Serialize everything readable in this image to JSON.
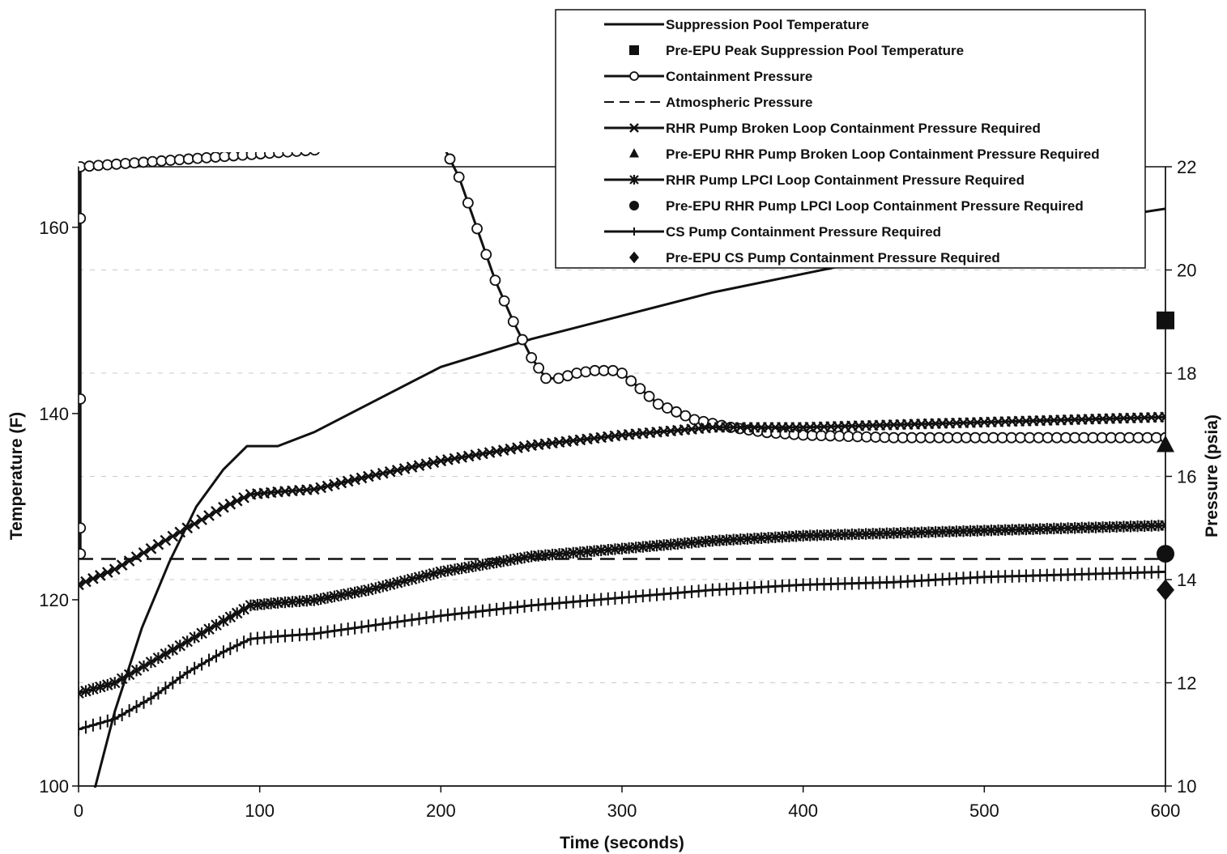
{
  "chart_data": {
    "type": "line",
    "xlabel": "Time (seconds)",
    "ylabel_left": "Temperature (F)",
    "ylabel_right": "Pressure (psia)",
    "xlim": [
      0,
      600
    ],
    "ylim_left": [
      100,
      166.5
    ],
    "ylim_right": [
      10,
      22
    ],
    "x_ticks": [
      "0",
      "100",
      "200",
      "300",
      "400",
      "500",
      "600"
    ],
    "y_left_ticks": [
      "100",
      "120",
      "140",
      "160"
    ],
    "y_right_ticks": [
      "10",
      "12",
      "14",
      "16",
      "18",
      "20",
      "22"
    ],
    "grid": "horizontal dashed",
    "legend": "top-right",
    "colors": {
      "line": "#111111",
      "background": "#ffffff"
    },
    "series": [
      {
        "name": "Suppression Pool Temperature",
        "axis": "left",
        "style": "solid",
        "x": [
          8,
          20,
          35,
          50,
          65,
          80,
          93,
          100,
          110,
          130,
          160,
          200,
          250,
          300,
          350,
          400,
          450,
          500,
          550,
          600
        ],
        "y": [
          99,
          108,
          117,
          124,
          130,
          134,
          136.5,
          136.5,
          136.5,
          138,
          141,
          145,
          148,
          150.5,
          153,
          155,
          157,
          158.8,
          160.5,
          162
        ]
      },
      {
        "name": "Pre-EPU Peak Suppression Pool Temperature",
        "axis": "left",
        "marker": "square",
        "x": [
          600
        ],
        "y": [
          150
        ]
      },
      {
        "name": "Containment Pressure",
        "axis": "right",
        "style": "solid",
        "marker": "circle",
        "x": [
          1,
          1,
          1,
          1,
          1,
          200,
          210,
          220,
          230,
          240,
          250,
          258,
          265,
          275,
          285,
          295,
          300,
          310,
          320,
          340,
          360,
          380,
          400,
          450,
          500,
          550,
          600
        ],
        "y": [
          14.5,
          15,
          17.5,
          21,
          22,
          22.5,
          21.8,
          20.8,
          19.8,
          19.0,
          18.3,
          17.9,
          17.9,
          18.0,
          18.05,
          18.05,
          18.0,
          17.7,
          17.4,
          17.1,
          16.95,
          16.85,
          16.8,
          16.75,
          16.75,
          16.75,
          16.75
        ]
      },
      {
        "name": "Atmospheric Pressure",
        "axis": "right",
        "style": "dashed",
        "x": [
          0,
          600
        ],
        "y": [
          14.4,
          14.4
        ]
      },
      {
        "name": "RHR Pump Broken Loop Containment Pressure Required",
        "axis": "right",
        "style": "solid",
        "marker": "x",
        "x": [
          0,
          20,
          40,
          60,
          80,
          95,
          110,
          130,
          160,
          200,
          250,
          300,
          350,
          400,
          450,
          500,
          550,
          600
        ],
        "y": [
          13.9,
          14.2,
          14.6,
          15.0,
          15.4,
          15.65,
          15.7,
          15.75,
          16.0,
          16.3,
          16.6,
          16.8,
          16.95,
          16.95,
          17.0,
          17.05,
          17.1,
          17.15
        ]
      },
      {
        "name": "Pre-EPU RHR Pump Broken Loop Containment Pressure Required",
        "axis": "right",
        "marker": "triangle",
        "x": [
          600
        ],
        "y": [
          16.6
        ]
      },
      {
        "name": "RHR Pump LPCI Loop Containment Pressure Required",
        "axis": "right",
        "style": "solid",
        "marker": "star",
        "x": [
          0,
          20,
          40,
          60,
          80,
          95,
          110,
          130,
          160,
          200,
          250,
          300,
          350,
          400,
          450,
          500,
          550,
          600
        ],
        "y": [
          11.8,
          12.0,
          12.4,
          12.8,
          13.2,
          13.5,
          13.55,
          13.6,
          13.8,
          14.15,
          14.45,
          14.6,
          14.75,
          14.85,
          14.9,
          14.95,
          15.0,
          15.05
        ]
      },
      {
        "name": "Pre-EPU RHR Pump LPCI Loop Containment Pressure Required",
        "axis": "right",
        "marker": "circle-filled",
        "x": [
          600
        ],
        "y": [
          14.5
        ]
      },
      {
        "name": "CS Pump Containment Pressure Required",
        "axis": "right",
        "style": "solid",
        "marker": "plus",
        "x": [
          0,
          20,
          40,
          60,
          80,
          95,
          110,
          130,
          160,
          200,
          250,
          300,
          350,
          400,
          450,
          500,
          550,
          600
        ],
        "y": [
          11.1,
          11.3,
          11.7,
          12.2,
          12.6,
          12.85,
          12.9,
          12.95,
          13.1,
          13.3,
          13.5,
          13.65,
          13.8,
          13.9,
          13.95,
          14.05,
          14.1,
          14.15
        ]
      },
      {
        "name": "Pre-EPU CS Pump Containment Pressure Required",
        "axis": "right",
        "marker": "diamond",
        "x": [
          600
        ],
        "y": [
          13.8
        ]
      }
    ]
  }
}
